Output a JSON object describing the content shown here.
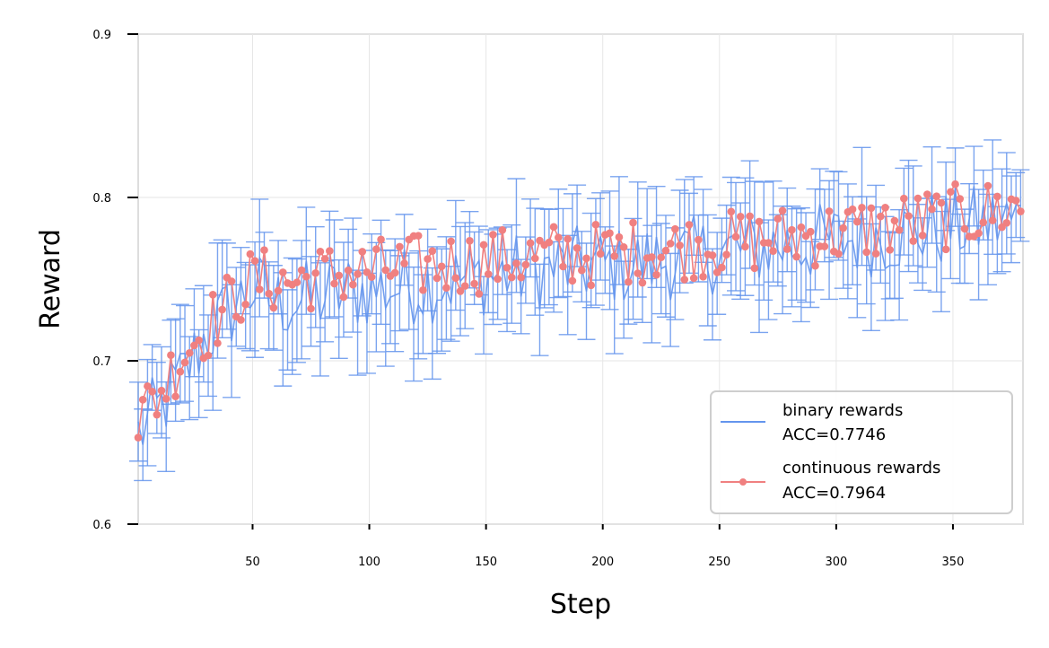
{
  "chart_data": {
    "type": "line",
    "xlabel": "Step",
    "ylabel": "Reward",
    "xlim": [
      1,
      380
    ],
    "ylim": [
      0.6,
      0.9
    ],
    "xticks": [
      50,
      100,
      150,
      200,
      250,
      300,
      350
    ],
    "yticks": [
      0.6,
      0.7,
      0.8,
      0.9
    ],
    "xtick_labels": [
      "50",
      "100",
      "150",
      "200",
      "250",
      "300",
      "350"
    ],
    "ytick_labels": [
      "0.6",
      "0.7",
      "0.8",
      "0.9"
    ],
    "grid": true,
    "legend_position": "lower-right",
    "colors": {
      "binary": "#6495ED",
      "continuous": "#F08080"
    },
    "series": [
      {
        "name": "binary rewards",
        "accuracy_label": "ACC=0.7746",
        "style": "line with error bars",
        "control_points": [
          [
            1,
            0.655
          ],
          [
            10,
            0.67
          ],
          [
            20,
            0.69
          ],
          [
            30,
            0.715
          ],
          [
            40,
            0.73
          ],
          [
            50,
            0.745
          ],
          [
            60,
            0.735
          ],
          [
            75,
            0.738
          ],
          [
            90,
            0.742
          ],
          [
            110,
            0.745
          ],
          [
            130,
            0.748
          ],
          [
            150,
            0.752
          ],
          [
            170,
            0.755
          ],
          [
            190,
            0.758
          ],
          [
            210,
            0.758
          ],
          [
            230,
            0.762
          ],
          [
            250,
            0.766
          ],
          [
            270,
            0.77
          ],
          [
            290,
            0.772
          ],
          [
            310,
            0.775
          ],
          [
            330,
            0.778
          ],
          [
            350,
            0.782
          ],
          [
            380,
            0.786
          ]
        ],
        "error_half_width": 0.028
      },
      {
        "name": "continuous rewards",
        "accuracy_label": "ACC=0.7964",
        "style": "line with markers",
        "control_points": [
          [
            1,
            0.665
          ],
          [
            10,
            0.68
          ],
          [
            20,
            0.705
          ],
          [
            30,
            0.72
          ],
          [
            40,
            0.735
          ],
          [
            50,
            0.75
          ],
          [
            65,
            0.748
          ],
          [
            80,
            0.752
          ],
          [
            100,
            0.755
          ],
          [
            120,
            0.758
          ],
          [
            140,
            0.76
          ],
          [
            160,
            0.762
          ],
          [
            180,
            0.765
          ],
          [
            200,
            0.765
          ],
          [
            220,
            0.768
          ],
          [
            240,
            0.77
          ],
          [
            260,
            0.773
          ],
          [
            280,
            0.776
          ],
          [
            300,
            0.778
          ],
          [
            320,
            0.782
          ],
          [
            340,
            0.786
          ],
          [
            360,
            0.79
          ],
          [
            380,
            0.795
          ]
        ]
      }
    ]
  }
}
